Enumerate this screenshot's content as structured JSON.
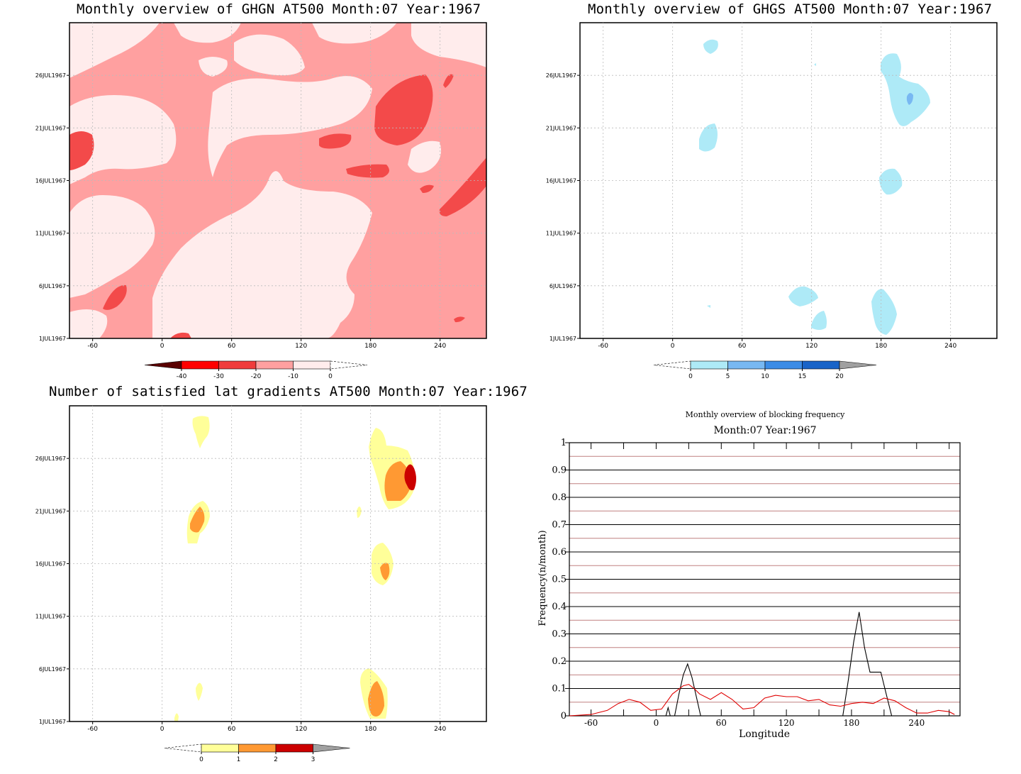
{
  "panels": [
    {
      "id": "ghgn",
      "title": "Monthly overview of GHGN AT500 Month:07 Year:1967",
      "x_ticks": [
        "-60",
        "0",
        "60",
        "120",
        "180",
        "240"
      ],
      "y_ticks": [
        "1JUL1967",
        "6JUL1967",
        "11JUL1967",
        "16JUL1967",
        "21JUL1967",
        "26JUL1967"
      ],
      "colorbar": {
        "labels": [
          "-40",
          "-30",
          "-20",
          "-10",
          "0"
        ],
        "colors": [
          "#5a0000",
          "#ff0000",
          "#f03c3c",
          "#ffa0a0",
          "#ffecec",
          "#ffffff"
        ]
      }
    },
    {
      "id": "ghgs",
      "title": "Monthly overview of GHGS AT500 Month:07 Year:1967",
      "x_ticks": [
        "-60",
        "0",
        "60",
        "120",
        "180",
        "240"
      ],
      "y_ticks": [
        "1JUL1967",
        "6JUL1967",
        "11JUL1967",
        "16JUL1967",
        "21JUL1967",
        "26JUL1967"
      ],
      "colorbar": {
        "labels": [
          "0",
          "5",
          "10",
          "15",
          "20"
        ],
        "colors": [
          "#ffffff",
          "#aeeaf7",
          "#78b8f2",
          "#3c8ce6",
          "#1964c8",
          "#a0a0a0"
        ]
      }
    },
    {
      "id": "gradients",
      "title": "Number of satisfied lat gradients AT500 Month:07 Year:1967",
      "x_ticks": [
        "-60",
        "0",
        "60",
        "120",
        "180",
        "240"
      ],
      "y_ticks": [
        "1JUL1967",
        "6JUL1967",
        "11JUL1967",
        "16JUL1967",
        "21JUL1967",
        "26JUL1967"
      ],
      "colorbar": {
        "labels": [
          "0",
          "1",
          "2",
          "3"
        ],
        "colors": [
          "#ffffff",
          "#ffff99",
          "#ff9933",
          "#cc0000",
          "#a0a0a0"
        ]
      }
    }
  ],
  "chart_data": [
    {
      "type": "heatmap",
      "title": "Monthly overview of GHGN AT500 Month:07 Year:1967",
      "xlim": [
        -80,
        280
      ],
      "ylim_days": [
        1,
        31
      ],
      "levels": [
        -40,
        -30,
        -20,
        -10,
        0
      ],
      "dominant_bands": [
        "0 to -10",
        "-10 to -20"
      ]
    },
    {
      "type": "heatmap",
      "title": "Monthly overview of GHGS AT500 Month:07 Year:1967",
      "xlim": [
        -80,
        280
      ],
      "ylim_days": [
        1,
        31
      ],
      "levels": [
        0,
        5,
        10,
        15,
        20
      ]
    },
    {
      "type": "heatmap",
      "title": "Number of satisfied lat gradients AT500 Month:07 Year:1967",
      "xlim": [
        -80,
        280
      ],
      "ylim_days": [
        1,
        31
      ],
      "levels": [
        0,
        1,
        2,
        3
      ]
    },
    {
      "type": "line",
      "title": "Monthly overview of blocking frequency",
      "subtitle": "Month:07 Year:1967",
      "xlabel": "Longitude",
      "ylabel": "Frequency(n/month)",
      "xlim": [
        -80,
        280
      ],
      "ylim": [
        0,
        1
      ],
      "x_ticks": [
        "-60",
        "0",
        "60",
        "120",
        "180",
        "240"
      ],
      "y_ticks": [
        "0",
        "0.1",
        "0.2",
        "0.3",
        "0.4",
        "0.5",
        "0.6",
        "0.7",
        "0.8",
        "0.9",
        "1"
      ],
      "series": [
        {
          "color": "#000000",
          "x": [
            -80,
            9,
            11,
            13,
            17,
            21,
            25,
            29,
            33,
            37,
            41,
            45,
            155,
            165,
            172,
            177,
            182,
            187,
            192,
            197,
            202,
            207,
            212,
            217,
            222,
            232,
            280
          ],
          "values": [
            0,
            0,
            0.03,
            0,
            0,
            0.08,
            0.15,
            0.19,
            0.14,
            0.07,
            0,
            0,
            0,
            0,
            0,
            0.13,
            0.27,
            0.38,
            0.25,
            0.16,
            0.16,
            0.16,
            0.08,
            0,
            0,
            0,
            0
          ]
        },
        {
          "color": "#e00000",
          "x": [
            -80,
            -60,
            -45,
            -35,
            -25,
            -15,
            -5,
            5,
            15,
            25,
            30,
            35,
            40,
            50,
            60,
            70,
            80,
            90,
            100,
            110,
            120,
            130,
            140,
            150,
            160,
            170,
            180,
            190,
            200,
            210,
            220,
            230,
            240,
            250,
            260,
            270,
            275
          ],
          "values": [
            0,
            0.005,
            0.02,
            0.045,
            0.06,
            0.05,
            0.02,
            0.025,
            0.08,
            0.11,
            0.115,
            0.1,
            0.08,
            0.06,
            0.085,
            0.06,
            0.025,
            0.03,
            0.065,
            0.075,
            0.07,
            0.07,
            0.055,
            0.06,
            0.04,
            0.035,
            0.045,
            0.05,
            0.045,
            0.065,
            0.055,
            0.03,
            0.01,
            0.01,
            0.02,
            0.015,
            0.005
          ]
        }
      ]
    }
  ]
}
